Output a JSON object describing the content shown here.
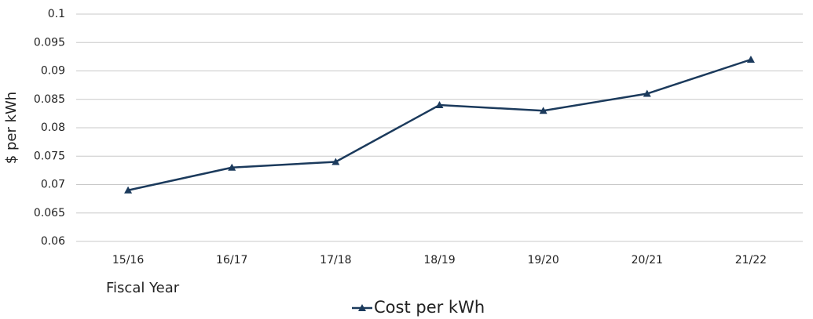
{
  "chart_data": {
    "type": "line",
    "y_label": "$ per kWh",
    "x_label": "Fiscal Year",
    "categories": [
      "15/16",
      "16/17",
      "17/18",
      "18/19",
      "19/20",
      "20/21",
      "21/22"
    ],
    "series": [
      {
        "name": "Cost per kWh",
        "color": "#1b3a5c",
        "values": [
          0.069,
          0.073,
          0.074,
          0.084,
          0.083,
          0.086,
          0.092
        ]
      }
    ],
    "ylim": [
      0.06,
      0.1
    ],
    "yticks": [
      0.06,
      0.065,
      0.07,
      0.075,
      0.08,
      0.085,
      0.09,
      0.095,
      0.1
    ],
    "grid": true,
    "legend": "bottom"
  }
}
